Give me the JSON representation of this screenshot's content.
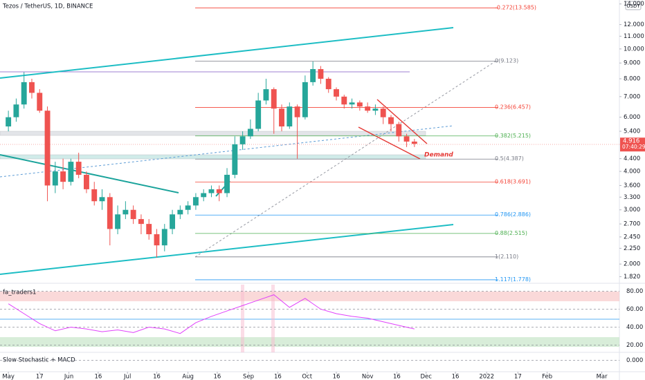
{
  "header": "Tezos / TetherUS, 1D, BINANCE",
  "chart_data": [
    {
      "type": "candlestick",
      "currency": "USDT",
      "log_scale": true,
      "x": [
        0,
        4,
        8,
        12,
        16,
        20,
        24,
        28,
        32,
        36,
        40,
        44,
        48,
        52,
        56,
        60,
        64,
        68,
        72,
        76,
        80,
        84,
        88,
        92,
        96,
        100,
        104,
        108,
        112,
        116,
        120,
        124,
        128,
        132,
        136,
        140,
        144,
        148,
        152,
        156,
        160,
        164,
        168,
        172,
        176,
        180,
        184,
        188,
        192,
        196,
        200,
        204,
        208
      ],
      "open": [
        5.6,
        6.0,
        6.6,
        7.8,
        7.2,
        6.3,
        3.6,
        4.0,
        3.7,
        4.3,
        3.9,
        3.5,
        3.2,
        3.3,
        2.6,
        2.9,
        3.0,
        2.8,
        2.7,
        2.5,
        2.3,
        2.6,
        2.9,
        3.0,
        3.1,
        3.3,
        3.4,
        3.5,
        3.4,
        3.9,
        4.9,
        5.2,
        5.5,
        6.8,
        7.4,
        6.4,
        5.6,
        6.5,
        6.0,
        7.8,
        8.6,
        8.0,
        7.4,
        7.0,
        6.6,
        6.7,
        6.5,
        6.3,
        6.4,
        6.0,
        5.7,
        5.2,
        5.0
      ],
      "high": [
        6.3,
        6.9,
        8.4,
        8.0,
        7.4,
        6.5,
        4.3,
        4.4,
        4.4,
        4.6,
        4.0,
        3.7,
        3.5,
        3.4,
        3.1,
        3.2,
        3.1,
        2.9,
        2.8,
        2.6,
        2.7,
        3.0,
        3.1,
        3.2,
        3.4,
        3.5,
        3.6,
        3.6,
        4.1,
        5.2,
        5.4,
        5.9,
        7.2,
        8.0,
        7.5,
        6.6,
        6.7,
        6.6,
        8.2,
        9.1,
        8.8,
        8.1,
        7.5,
        7.1,
        6.9,
        6.8,
        6.7,
        6.6,
        6.5,
        6.1,
        5.8,
        5.3,
        5.1
      ],
      "low": [
        5.4,
        5.8,
        6.4,
        6.9,
        6.2,
        3.2,
        3.4,
        3.5,
        3.6,
        3.8,
        3.4,
        3.1,
        3.0,
        2.3,
        2.5,
        2.8,
        2.7,
        2.5,
        2.4,
        2.1,
        2.2,
        2.5,
        2.8,
        2.9,
        3.0,
        3.2,
        3.3,
        3.2,
        3.3,
        3.8,
        4.7,
        5.1,
        5.4,
        6.6,
        5.3,
        5.4,
        5.5,
        4.4,
        5.9,
        7.6,
        7.7,
        7.2,
        6.8,
        6.4,
        6.4,
        6.3,
        6.2,
        6.1,
        5.7,
        5.4,
        5.0,
        4.8,
        4.8
      ],
      "close": [
        6.0,
        6.6,
        7.8,
        7.2,
        6.3,
        3.6,
        4.0,
        3.7,
        4.3,
        3.9,
        3.5,
        3.2,
        3.3,
        2.6,
        2.9,
        3.0,
        2.8,
        2.7,
        2.5,
        2.3,
        2.6,
        2.9,
        3.0,
        3.1,
        3.3,
        3.4,
        3.5,
        3.4,
        3.9,
        4.9,
        5.2,
        5.5,
        6.8,
        7.4,
        6.4,
        5.6,
        6.5,
        6.0,
        7.8,
        8.6,
        8.0,
        7.4,
        7.0,
        6.6,
        6.7,
        6.5,
        6.3,
        6.4,
        6.0,
        5.7,
        5.2,
        5.0,
        4.916
      ],
      "up_color": "#26a69a",
      "down_color": "#ef5350",
      "countdown": "07:40:29",
      "annotation": "Demand",
      "xlim": [
        -4.3,
        313
      ],
      "xticks": [
        {
          "value": 0,
          "label": "May"
        },
        {
          "value": 16,
          "label": "17"
        },
        {
          "value": 31,
          "label": "Jun"
        },
        {
          "value": 46,
          "label": "16"
        },
        {
          "value": 61,
          "label": "Jul"
        },
        {
          "value": 76,
          "label": "16"
        },
        {
          "value": 92,
          "label": "Aug"
        },
        {
          "value": 107,
          "label": "16"
        },
        {
          "value": 123,
          "label": "Sep"
        },
        {
          "value": 138,
          "label": "16"
        },
        {
          "value": 153,
          "label": "Oct"
        },
        {
          "value": 168,
          "label": "16"
        },
        {
          "value": 184,
          "label": "Nov"
        },
        {
          "value": 199,
          "label": "16"
        },
        {
          "value": 214,
          "label": "Dec"
        },
        {
          "value": 229,
          "label": "16"
        },
        {
          "value": 245,
          "label": "2022"
        },
        {
          "value": 261,
          "label": "17"
        },
        {
          "value": 276,
          "label": "Feb"
        },
        {
          "value": 304,
          "label": "Mar"
        }
      ],
      "ylim": [
        1.75,
        14.2
      ],
      "yticks": [
        {
          "value": 14,
          "label": "14.000"
        },
        {
          "value": 12,
          "label": "12.000"
        },
        {
          "value": 11,
          "label": "11.000"
        },
        {
          "value": 10,
          "label": "10.000"
        },
        {
          "value": 9,
          "label": "9.000"
        },
        {
          "value": 8,
          "label": "8.000"
        },
        {
          "value": 7,
          "label": "7.000"
        },
        {
          "value": 6,
          "label": "6.000"
        },
        {
          "value": 5.4,
          "label": "5.400"
        },
        {
          "value": 4.4,
          "label": "4.400"
        },
        {
          "value": 4,
          "label": "4.000"
        },
        {
          "value": 3.6,
          "label": "3.600"
        },
        {
          "value": 3.3,
          "label": "3.300"
        },
        {
          "value": 3,
          "label": "3.000"
        },
        {
          "value": 2.7,
          "label": "2.700"
        },
        {
          "value": 2.45,
          "label": "2.450"
        },
        {
          "value": 2.25,
          "label": "2.250"
        },
        {
          "value": 2,
          "label": "2.000"
        },
        {
          "value": 1.82,
          "label": "1.820"
        }
      ],
      "fib_levels": [
        {
          "label": "-0.272(13.585)",
          "value": 13.585,
          "color": "#f44336"
        },
        {
          "label": "0(9.123)",
          "value": 9.123,
          "color": "#787b86"
        },
        {
          "label": "0.236(6.457)",
          "value": 6.457,
          "color": "#f44336"
        },
        {
          "label": "0.382(5.215)",
          "value": 5.215,
          "color": "#4caf50"
        },
        {
          "label": "0.5(4.387)",
          "value": 4.387,
          "color": "#787b86"
        },
        {
          "label": "0.618(3.691)",
          "value": 3.691,
          "color": "#f44336"
        },
        {
          "label": "0.786(2.886)",
          "value": 2.886,
          "color": "#2196f3"
        },
        {
          "label": "0.88(2.515)",
          "value": 2.515,
          "color": "#4caf50"
        },
        {
          "label": "1(2.110)",
          "value": 2.11,
          "color": "#787b86"
        },
        {
          "label": "1.117(1.778)",
          "value": 1.778,
          "color": "#2196f3"
        }
      ]
    },
    {
      "type": "line",
      "title": "fa_traders1",
      "x": [
        0,
        8,
        16,
        24,
        32,
        40,
        48,
        56,
        64,
        72,
        80,
        88,
        96,
        104,
        112,
        120,
        128,
        136,
        144,
        152,
        160,
        168,
        176,
        184,
        192,
        200,
        208
      ],
      "series": [
        {
          "color": "#e040fb",
          "values": [
            66,
            55,
            44,
            36,
            40,
            38,
            35,
            37,
            34,
            40,
            38,
            33,
            45,
            52,
            58,
            64,
            70,
            76,
            62,
            72,
            60,
            55,
            52,
            50,
            46,
            42,
            38
          ]
        }
      ],
      "ylim": [
        13.6,
        87.2
      ],
      "yticks": [
        {
          "value": 80,
          "label": "80.00"
        },
        {
          "value": 60,
          "label": "60.00"
        },
        {
          "value": 40,
          "label": "40.00"
        },
        {
          "value": 20,
          "label": "20.00"
        }
      ]
    },
    {
      "type": "line",
      "title": "Slow Stochastic + MACD",
      "ylim": [
        -0.6,
        0.3
      ],
      "yticks": [
        {
          "value": 0,
          "label": "0.000"
        }
      ]
    }
  ]
}
